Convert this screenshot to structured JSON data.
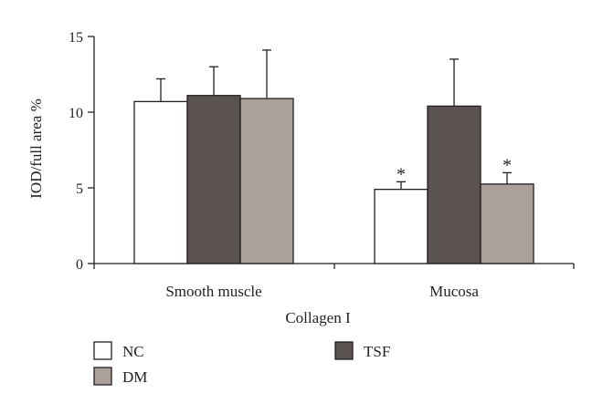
{
  "chart_data": {
    "type": "bar",
    "title": "",
    "xlabel": "Collagen I",
    "ylabel": "IOD/full area %",
    "ylim": [
      0,
      15
    ],
    "yticks": [
      0,
      5,
      10,
      15
    ],
    "grid": false,
    "legend_position": "bottom",
    "categories": [
      "Smooth muscle",
      "Mucosa"
    ],
    "series": [
      {
        "name": "NC",
        "color": "#ffffff",
        "values": [
          10.7,
          4.9
        ],
        "errors": [
          1.5,
          0.5
        ],
        "significance": [
          "",
          "*"
        ]
      },
      {
        "name": "TSF",
        "color": "#5a5350",
        "values": [
          11.1,
          10.4
        ],
        "errors": [
          1.9,
          3.1
        ],
        "significance": [
          "",
          ""
        ]
      },
      {
        "name": "DM",
        "color": "#aca19a",
        "values": [
          10.9,
          5.25
        ],
        "errors": [
          3.2,
          0.75
        ],
        "significance": [
          "",
          "*"
        ]
      }
    ]
  }
}
